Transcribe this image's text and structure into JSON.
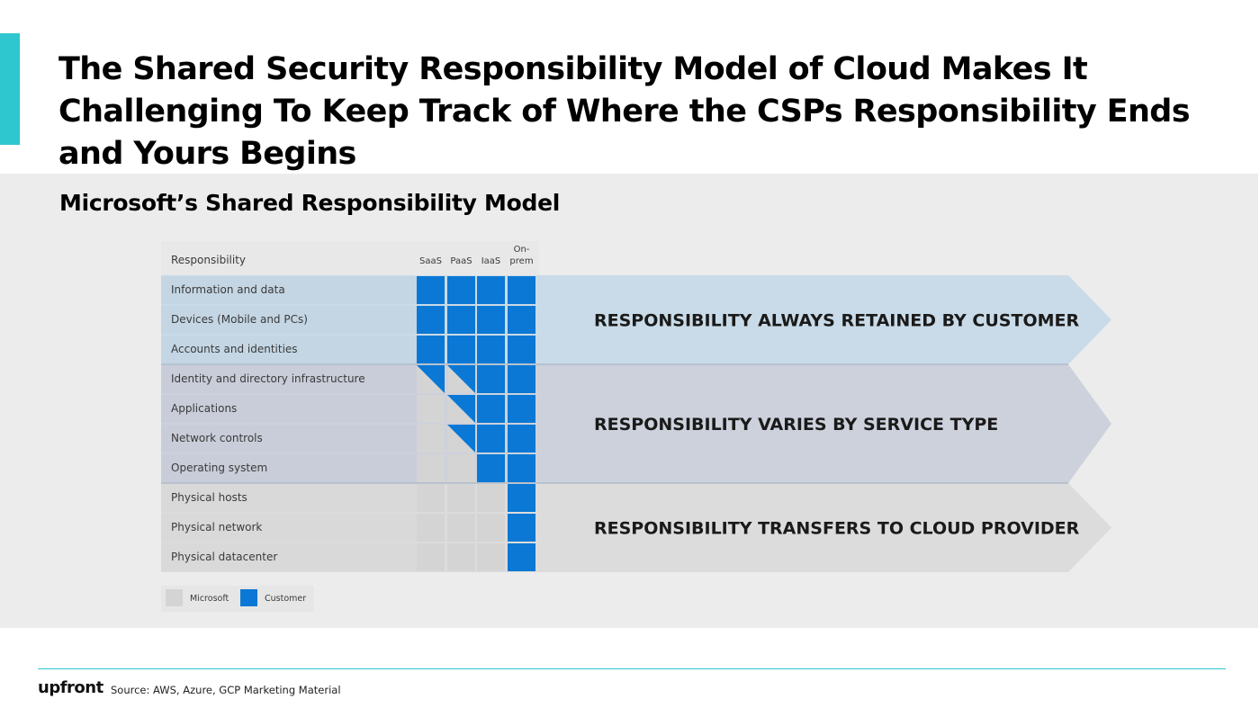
{
  "slide": {
    "title": "The Shared Security Responsibility Model of Cloud Makes It Challenging To Keep Track of Where the CSPs Responsibility Ends and Yours Begins",
    "subtitle": "Microsoft’s Shared Responsibility Model"
  },
  "diagram": {
    "header": "Responsibility",
    "columns": [
      "SaaS",
      "PaaS",
      "IaaS",
      "On-\nprem"
    ],
    "rows": [
      {
        "label": "Information and data",
        "cells": [
          "customer",
          "customer",
          "customer",
          "customer"
        ]
      },
      {
        "label": "Devices (Mobile and PCs)",
        "cells": [
          "customer",
          "customer",
          "customer",
          "customer"
        ]
      },
      {
        "label": "Accounts and identities",
        "cells": [
          "customer",
          "customer",
          "customer",
          "customer"
        ]
      },
      {
        "label": "Identity and directory infrastructure",
        "cells": [
          "shared",
          "shared",
          "customer",
          "customer"
        ]
      },
      {
        "label": "Applications",
        "cells": [
          "microsoft",
          "shared",
          "customer",
          "customer"
        ]
      },
      {
        "label": "Network controls",
        "cells": [
          "microsoft",
          "shared",
          "customer",
          "customer"
        ]
      },
      {
        "label": "Operating system",
        "cells": [
          "microsoft",
          "microsoft",
          "customer",
          "customer"
        ]
      },
      {
        "label": "Physical hosts",
        "cells": [
          "microsoft",
          "microsoft",
          "microsoft",
          "customer"
        ]
      },
      {
        "label": "Physical network",
        "cells": [
          "microsoft",
          "microsoft",
          "microsoft",
          "customer"
        ]
      },
      {
        "label": "Physical datacenter",
        "cells": [
          "microsoft",
          "microsoft",
          "microsoft",
          "customer"
        ]
      }
    ],
    "bands": [
      {
        "text": "RESPONSIBILITY ALWAYS RETAINED BY CUSTOMER",
        "rows": 3,
        "color": "#c9dbe8",
        "row_color": "#c4d6e4"
      },
      {
        "text": "RESPONSIBILITY VARIES BY SERVICE TYPE",
        "rows": 4,
        "color": "#cdd1dc",
        "row_color": "#c9cdd9"
      },
      {
        "text": "RESPONSIBILITY TRANSFERS TO CLOUD PROVIDER",
        "rows": 3,
        "color": "#dcdcdc",
        "row_color": "#d9d9d9"
      }
    ],
    "legend": [
      {
        "label": "Microsoft",
        "color": "#d4d4d4"
      },
      {
        "label": "Customer",
        "color": "#0a78d4"
      }
    ],
    "colors": {
      "customer": "#0a78d4",
      "microsoft": "#d4d4d4",
      "header_bg": "#e8e8e8"
    }
  },
  "footer": {
    "logo": "upfront",
    "source": "Source: AWS, Azure, GCP Marketing Material"
  }
}
